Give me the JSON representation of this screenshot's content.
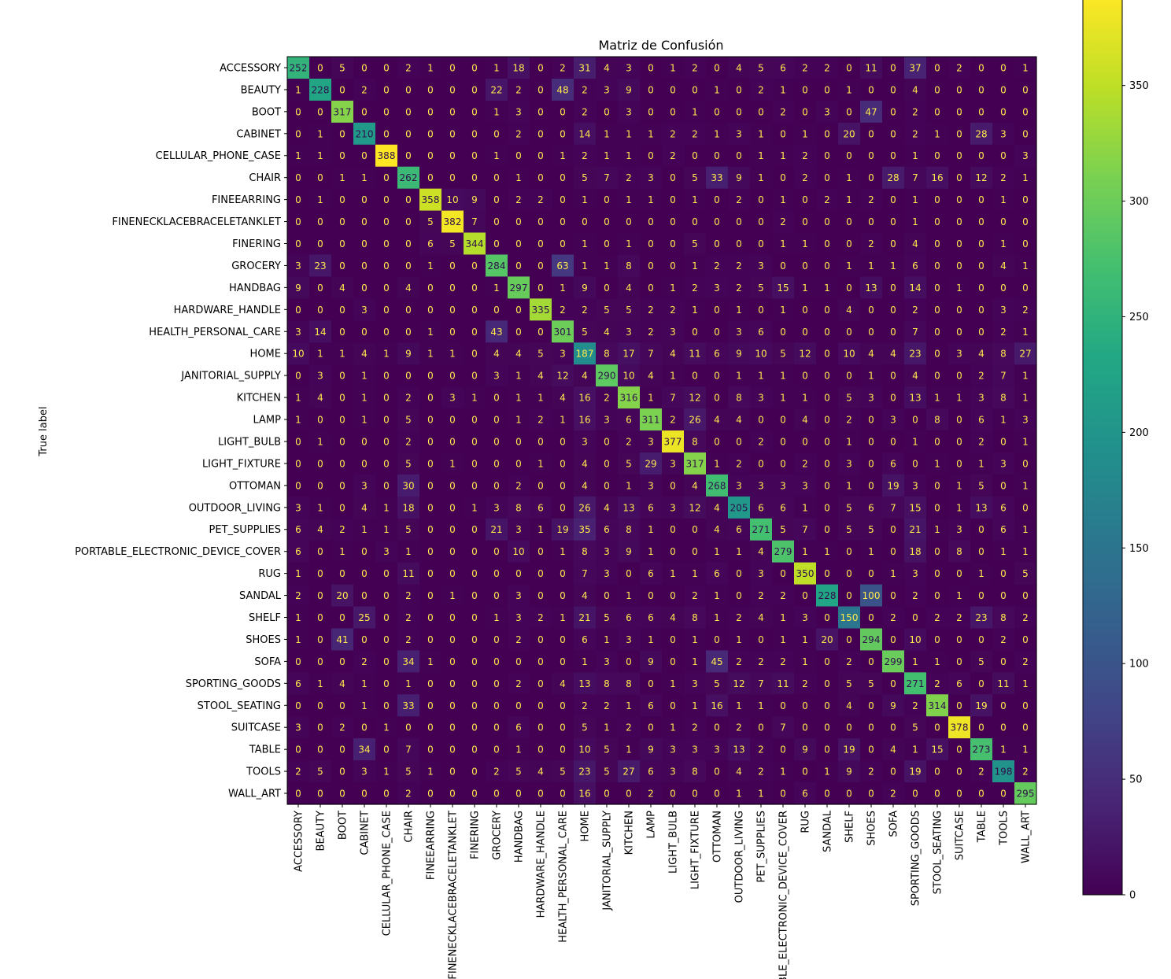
{
  "chart_data": {
    "type": "heatmap",
    "title": "Matriz de Confusión",
    "ylabel": "True label",
    "xlabel": "",
    "labels": [
      "ACCESSORY",
      "BEAUTY",
      "BOOT",
      "CABINET",
      "CELLULAR_PHONE_CASE",
      "CHAIR",
      "FINEEARRING",
      "FINENECKLACEBRACELETANKLET",
      "FINERING",
      "GROCERY",
      "HANDBAG",
      "HARDWARE_HANDLE",
      "HEALTH_PERSONAL_CARE",
      "HOME",
      "JANITORIAL_SUPPLY",
      "KITCHEN",
      "LAMP",
      "LIGHT_BULB",
      "LIGHT_FIXTURE",
      "OTTOMAN",
      "OUTDOOR_LIVING",
      "PET_SUPPLIES",
      "PORTABLE_ELECTRONIC_DEVICE_COVER",
      "RUG",
      "SANDAL",
      "SHELF",
      "SHOES",
      "SOFA",
      "SPORTING_GOODS",
      "STOOL_SEATING",
      "SUITCASE",
      "TABLE",
      "TOOLS",
      "WALL_ART"
    ],
    "matrix": [
      [
        252,
        0,
        5,
        0,
        0,
        2,
        1,
        0,
        0,
        1,
        18,
        0,
        2,
        31,
        4,
        3,
        0,
        1,
        2,
        0,
        4,
        5,
        6,
        2,
        2,
        0,
        11,
        0,
        37,
        0,
        2,
        0,
        0,
        1
      ],
      [
        1,
        228,
        0,
        2,
        0,
        0,
        0,
        0,
        0,
        22,
        2,
        0,
        48,
        2,
        3,
        9,
        0,
        0,
        0,
        1,
        0,
        2,
        1,
        0,
        0,
        1,
        0,
        0,
        4,
        0,
        0,
        0,
        0,
        0
      ],
      [
        0,
        0,
        317,
        0,
        0,
        0,
        0,
        0,
        0,
        1,
        3,
        0,
        0,
        2,
        0,
        3,
        0,
        0,
        1,
        0,
        0,
        0,
        2,
        0,
        3,
        0,
        47,
        0,
        2,
        0,
        0,
        0,
        0,
        0
      ],
      [
        0,
        1,
        0,
        210,
        0,
        0,
        0,
        0,
        0,
        0,
        2,
        0,
        0,
        14,
        1,
        1,
        1,
        2,
        2,
        1,
        3,
        1,
        0,
        1,
        0,
        20,
        0,
        0,
        2,
        1,
        0,
        28,
        3,
        0
      ],
      [
        1,
        1,
        0,
        0,
        388,
        0,
        0,
        0,
        0,
        1,
        0,
        0,
        1,
        2,
        1,
        1,
        0,
        2,
        0,
        0,
        0,
        1,
        1,
        2,
        0,
        0,
        0,
        0,
        1,
        0,
        0,
        0,
        0,
        3
      ],
      [
        0,
        0,
        1,
        1,
        0,
        262,
        0,
        0,
        0,
        0,
        1,
        0,
        0,
        5,
        7,
        2,
        3,
        0,
        5,
        33,
        9,
        1,
        0,
        2,
        0,
        1,
        0,
        28,
        7,
        16,
        0,
        12,
        2,
        1
      ],
      [
        0,
        1,
        0,
        0,
        0,
        0,
        358,
        10,
        9,
        0,
        2,
        2,
        0,
        1,
        0,
        1,
        1,
        0,
        1,
        0,
        2,
        0,
        1,
        0,
        2,
        1,
        2,
        0,
        1,
        0,
        0,
        0,
        1,
        0
      ],
      [
        0,
        0,
        0,
        0,
        0,
        0,
        5,
        382,
        7,
        0,
        0,
        0,
        0,
        0,
        0,
        0,
        0,
        0,
        0,
        0,
        0,
        0,
        2,
        0,
        0,
        0,
        0,
        0,
        1,
        0,
        0,
        0,
        0,
        0
      ],
      [
        0,
        0,
        0,
        0,
        0,
        0,
        6,
        5,
        344,
        0,
        0,
        0,
        0,
        1,
        0,
        1,
        0,
        0,
        5,
        0,
        0,
        0,
        1,
        1,
        0,
        0,
        2,
        0,
        4,
        0,
        0,
        0,
        1,
        0
      ],
      [
        3,
        23,
        0,
        0,
        0,
        0,
        1,
        0,
        0,
        284,
        0,
        0,
        63,
        1,
        1,
        8,
        0,
        0,
        1,
        2,
        2,
        3,
        0,
        0,
        0,
        1,
        1,
        1,
        6,
        0,
        0,
        0,
        4,
        1
      ],
      [
        9,
        0,
        4,
        0,
        0,
        4,
        0,
        0,
        0,
        1,
        297,
        0,
        1,
        9,
        0,
        4,
        0,
        1,
        2,
        3,
        2,
        5,
        15,
        1,
        1,
        0,
        13,
        0,
        14,
        0,
        1,
        0,
        0,
        0
      ],
      [
        0,
        0,
        0,
        3,
        0,
        0,
        0,
        0,
        0,
        0,
        0,
        335,
        2,
        2,
        5,
        5,
        2,
        2,
        1,
        0,
        1,
        0,
        1,
        0,
        0,
        4,
        0,
        0,
        2,
        0,
        0,
        0,
        3,
        2
      ],
      [
        3,
        14,
        0,
        0,
        0,
        0,
        1,
        0,
        0,
        43,
        0,
        0,
        301,
        5,
        4,
        3,
        2,
        3,
        0,
        0,
        3,
        6,
        0,
        0,
        0,
        0,
        0,
        0,
        7,
        0,
        0,
        0,
        2,
        1
      ],
      [
        10,
        1,
        1,
        4,
        1,
        9,
        1,
        1,
        0,
        4,
        4,
        5,
        3,
        187,
        8,
        17,
        7,
        4,
        11,
        6,
        9,
        10,
        5,
        12,
        0,
        10,
        4,
        4,
        23,
        0,
        3,
        4,
        8,
        27
      ],
      [
        0,
        3,
        0,
        1,
        0,
        0,
        0,
        0,
        0,
        3,
        1,
        4,
        12,
        4,
        290,
        10,
        4,
        1,
        0,
        0,
        1,
        1,
        1,
        0,
        0,
        0,
        1,
        0,
        4,
        0,
        0,
        2,
        7,
        1
      ],
      [
        1,
        4,
        0,
        1,
        0,
        2,
        0,
        3,
        1,
        0,
        1,
        1,
        4,
        16,
        2,
        316,
        1,
        7,
        12,
        0,
        8,
        3,
        1,
        1,
        0,
        5,
        3,
        0,
        13,
        1,
        1,
        3,
        8,
        1
      ],
      [
        1,
        0,
        0,
        1,
        0,
        5,
        0,
        0,
        0,
        0,
        1,
        2,
        1,
        16,
        3,
        6,
        311,
        2,
        26,
        4,
        4,
        0,
        0,
        4,
        0,
        2,
        0,
        3,
        0,
        8,
        0,
        6,
        1,
        3
      ],
      [
        0,
        1,
        0,
        0,
        0,
        2,
        0,
        0,
        0,
        0,
        0,
        0,
        0,
        3,
        0,
        2,
        3,
        377,
        8,
        0,
        0,
        2,
        0,
        0,
        0,
        1,
        0,
        0,
        1,
        0,
        0,
        2,
        0,
        1
      ],
      [
        0,
        0,
        0,
        0,
        0,
        5,
        0,
        1,
        0,
        0,
        0,
        1,
        0,
        4,
        0,
        5,
        29,
        3,
        317,
        1,
        2,
        0,
        0,
        2,
        0,
        3,
        0,
        6,
        0,
        1,
        0,
        1,
        3,
        0
      ],
      [
        0,
        0,
        0,
        3,
        0,
        30,
        0,
        0,
        0,
        0,
        2,
        0,
        0,
        4,
        0,
        1,
        3,
        0,
        4,
        268,
        3,
        3,
        3,
        3,
        0,
        1,
        0,
        19,
        3,
        0,
        1,
        5,
        0,
        1
      ],
      [
        3,
        1,
        0,
        4,
        1,
        18,
        0,
        0,
        1,
        3,
        8,
        6,
        0,
        26,
        4,
        13,
        6,
        3,
        12,
        4,
        205,
        6,
        6,
        1,
        0,
        5,
        6,
        7,
        15,
        0,
        1,
        13,
        6,
        0
      ],
      [
        6,
        4,
        2,
        1,
        1,
        5,
        0,
        0,
        0,
        21,
        3,
        1,
        19,
        35,
        6,
        8,
        1,
        0,
        0,
        4,
        6,
        271,
        5,
        7,
        0,
        5,
        5,
        0,
        21,
        1,
        3,
        0,
        6,
        1
      ],
      [
        6,
        0,
        1,
        0,
        3,
        1,
        0,
        0,
        0,
        0,
        10,
        0,
        1,
        8,
        3,
        9,
        1,
        0,
        0,
        1,
        1,
        4,
        279,
        1,
        1,
        0,
        1,
        0,
        18,
        0,
        8,
        0,
        1,
        1
      ],
      [
        1,
        0,
        0,
        0,
        0,
        11,
        0,
        0,
        0,
        0,
        0,
        0,
        0,
        7,
        3,
        0,
        6,
        1,
        1,
        6,
        0,
        3,
        0,
        350,
        0,
        0,
        0,
        1,
        3,
        0,
        0,
        1,
        0,
        5
      ],
      [
        2,
        0,
        20,
        0,
        0,
        2,
        0,
        1,
        0,
        0,
        3,
        0,
        0,
        4,
        0,
        1,
        0,
        0,
        2,
        1,
        0,
        2,
        2,
        0,
        228,
        0,
        100,
        0,
        2,
        0,
        1,
        0,
        0,
        0
      ],
      [
        1,
        0,
        0,
        25,
        0,
        2,
        0,
        0,
        0,
        1,
        3,
        2,
        1,
        21,
        5,
        6,
        6,
        4,
        8,
        1,
        2,
        4,
        1,
        3,
        0,
        150,
        0,
        2,
        0,
        2,
        2,
        23,
        8,
        2
      ],
      [
        1,
        0,
        41,
        0,
        0,
        2,
        0,
        0,
        0,
        0,
        2,
        0,
        0,
        6,
        1,
        3,
        1,
        0,
        1,
        0,
        1,
        0,
        1,
        1,
        20,
        0,
        294,
        0,
        10,
        0,
        0,
        0,
        2,
        0
      ],
      [
        0,
        0,
        0,
        2,
        0,
        34,
        1,
        0,
        0,
        0,
        0,
        0,
        0,
        1,
        3,
        0,
        9,
        0,
        1,
        45,
        2,
        2,
        2,
        1,
        0,
        2,
        0,
        299,
        1,
        1,
        0,
        5,
        0,
        2
      ],
      [
        6,
        1,
        4,
        1,
        0,
        1,
        0,
        0,
        0,
        0,
        2,
        0,
        4,
        13,
        8,
        8,
        0,
        1,
        3,
        5,
        12,
        7,
        11,
        2,
        0,
        5,
        5,
        0,
        271,
        2,
        6,
        0,
        11,
        1
      ],
      [
        0,
        0,
        0,
        1,
        0,
        33,
        0,
        0,
        0,
        0,
        0,
        0,
        0,
        2,
        2,
        1,
        6,
        0,
        1,
        16,
        1,
        1,
        0,
        0,
        0,
        4,
        0,
        9,
        2,
        314,
        0,
        19,
        0,
        0
      ],
      [
        3,
        0,
        2,
        0,
        1,
        0,
        0,
        0,
        0,
        0,
        6,
        0,
        0,
        5,
        1,
        2,
        0,
        1,
        2,
        0,
        2,
        0,
        7,
        0,
        0,
        0,
        0,
        0,
        5,
        0,
        378,
        0,
        0,
        0
      ],
      [
        0,
        0,
        0,
        34,
        0,
        7,
        0,
        0,
        0,
        0,
        1,
        0,
        0,
        10,
        5,
        1,
        9,
        3,
        3,
        3,
        13,
        2,
        0,
        9,
        0,
        19,
        0,
        4,
        1,
        15,
        0,
        273,
        1,
        1
      ],
      [
        2,
        5,
        0,
        3,
        1,
        5,
        1,
        0,
        0,
        2,
        5,
        4,
        5,
        23,
        5,
        27,
        6,
        3,
        8,
        0,
        4,
        2,
        1,
        0,
        1,
        9,
        2,
        0,
        19,
        0,
        0,
        2,
        198,
        2
      ],
      [
        0,
        0,
        0,
        0,
        0,
        2,
        0,
        0,
        0,
        0,
        0,
        0,
        0,
        16,
        0,
        0,
        2,
        0,
        0,
        0,
        1,
        1,
        0,
        6,
        0,
        0,
        0,
        2,
        0,
        0,
        0,
        0,
        0,
        295
      ]
    ],
    "colorbar": {
      "min": 0,
      "max": 388,
      "ticks": [
        0,
        50,
        100,
        150,
        200,
        250,
        300,
        350
      ],
      "colormap": "viridis"
    },
    "grid": false
  }
}
